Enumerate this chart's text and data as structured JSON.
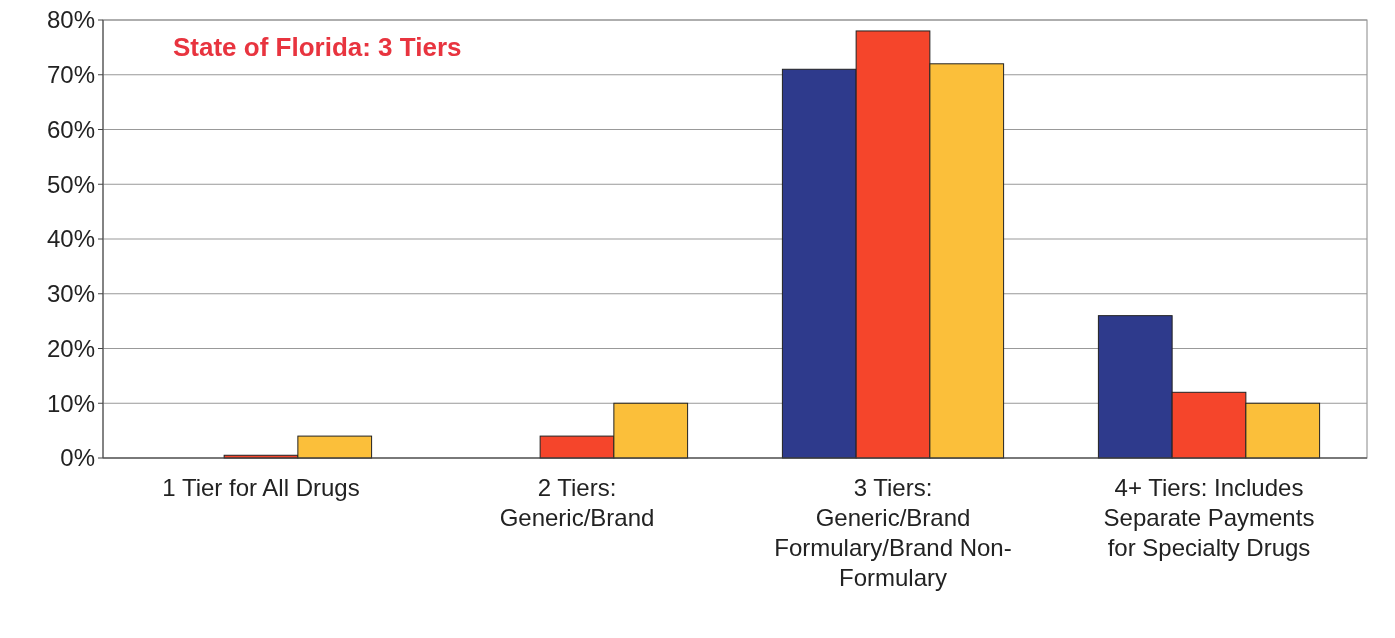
{
  "chart_data": {
    "type": "bar",
    "title": "State of Florida: 3 Tiers",
    "categories": [
      "1 Tier for All Drugs",
      "2 Tiers: Generic/Brand",
      "3 Tiers: Generic/Brand Formulary/Brand Non-Formulary",
      "4+ Tiers: Includes Separate Payments for Specialty Drugs"
    ],
    "series": [
      {
        "color": "#2e3a8c",
        "values": [
          0,
          0,
          71,
          26
        ]
      },
      {
        "color": "#f5452b",
        "values": [
          0.5,
          4,
          78,
          12
        ]
      },
      {
        "color": "#fbbf3a",
        "values": [
          4,
          10,
          72,
          10
        ]
      }
    ],
    "ylim": [
      0,
      80
    ],
    "yticks": [
      {
        "value": 0,
        "label": "0%"
      },
      {
        "value": 10,
        "label": "10%"
      },
      {
        "value": 20,
        "label": "20%"
      },
      {
        "value": 30,
        "label": "30%"
      },
      {
        "value": 40,
        "label": "40%"
      },
      {
        "value": 50,
        "label": "50%"
      },
      {
        "value": 60,
        "label": "60%"
      },
      {
        "value": 70,
        "label": "70%"
      },
      {
        "value": 80,
        "label": "80%"
      }
    ],
    "grid": "y"
  }
}
